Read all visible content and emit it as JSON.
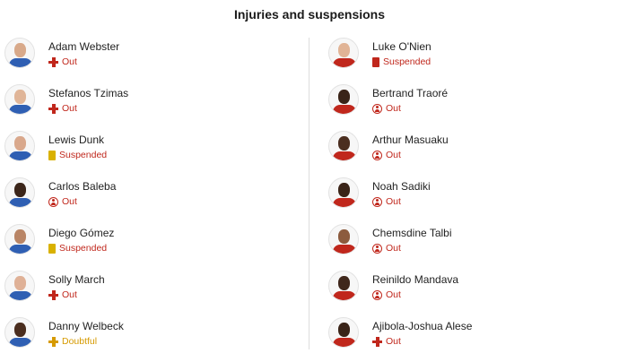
{
  "title": "Injuries and suspensions",
  "colors": {
    "out": "#c0271c",
    "suspended_yellow": "#d9b100",
    "suspended_red": "#c0271c",
    "doubtful": "#d69a00",
    "home_kit": "#2f5fb3",
    "away_kit": "#c0271c"
  },
  "left": [
    {
      "name": "Adam Webster",
      "status": "Out",
      "icon": "injury-cross-icon",
      "skin": "#d8a98a"
    },
    {
      "name": "Stefanos Tzimas",
      "status": "Out",
      "icon": "injury-cross-icon",
      "skin": "#e0b598"
    },
    {
      "name": "Lewis Dunk",
      "status": "Suspended",
      "icon": "yellow-card-icon",
      "skin": "#d9a88c"
    },
    {
      "name": "Carlos Baleba",
      "status": "Out",
      "icon": "person-unavailable-icon",
      "skin": "#3b2519"
    },
    {
      "name": "Diego Gómez",
      "status": "Suspended",
      "icon": "yellow-card-icon",
      "skin": "#b98566"
    },
    {
      "name": "Solly March",
      "status": "Out",
      "icon": "injury-cross-icon",
      "skin": "#dfb197"
    },
    {
      "name": "Danny Welbeck",
      "status": "Doubtful",
      "icon": "doubtful-cross-icon",
      "skin": "#4a2d1e"
    }
  ],
  "right": [
    {
      "name": "Luke O'Nien",
      "status": "Suspended",
      "icon": "red-card-icon",
      "skin": "#e1b496"
    },
    {
      "name": "Bertrand Traoré",
      "status": "Out",
      "icon": "person-unavailable-icon",
      "skin": "#3a2418"
    },
    {
      "name": "Arthur Masuaku",
      "status": "Out",
      "icon": "person-unavailable-icon",
      "skin": "#4b2e20"
    },
    {
      "name": "Noah Sadiki",
      "status": "Out",
      "icon": "person-unavailable-icon",
      "skin": "#3a2418"
    },
    {
      "name": "Chemsdine Talbi",
      "status": "Out",
      "icon": "person-unavailable-icon",
      "skin": "#8c5b3e"
    },
    {
      "name": "Reinildo Mandava",
      "status": "Out",
      "icon": "person-unavailable-icon",
      "skin": "#3f271b"
    },
    {
      "name": "Ajibola-Joshua Alese",
      "status": "Out",
      "icon": "injury-cross-icon",
      "skin": "#3a2418"
    }
  ]
}
